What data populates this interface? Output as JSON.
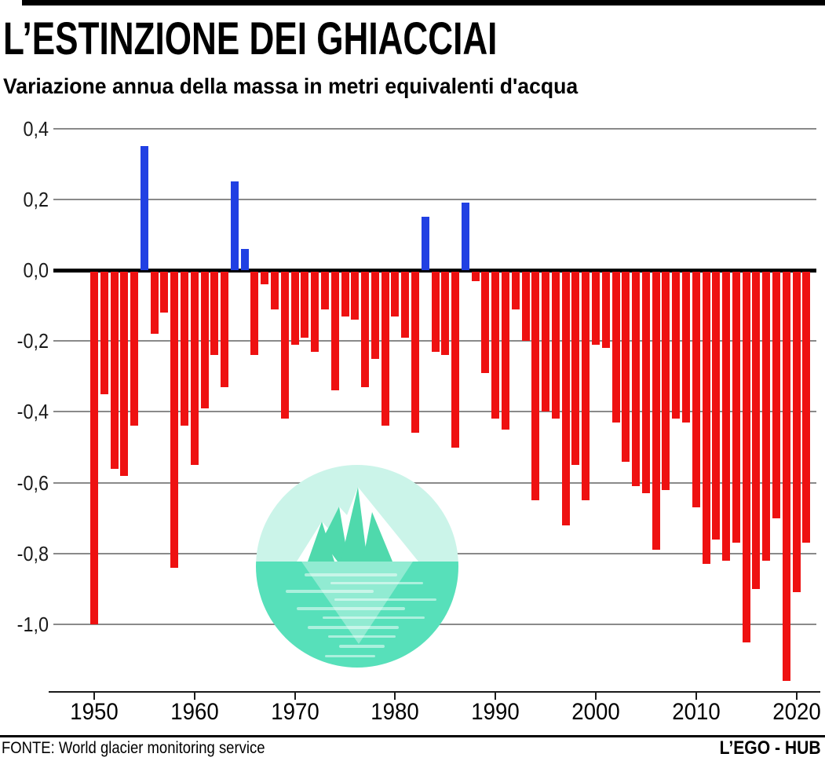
{
  "header": {
    "title": "L’ESTINZIONE DEI GHIACCIAI",
    "subtitle": "Variazione annua della massa in metri equivalenti d'acqua"
  },
  "footer": {
    "source": "FONTE: World glacier monitoring service",
    "brand": "L’EGO - HUB"
  },
  "colors": {
    "positive_bar": "#2140e3",
    "negative_bar": "#ee1111",
    "gridline": "#8a8a8a",
    "zero_line": "#000000",
    "iceberg_sky": "#cbf4e9",
    "iceberg_water": "#57e0ba",
    "iceberg_white": "#ffffff",
    "iceberg_facet": "#4fd9ac"
  },
  "chart_data": {
    "type": "bar",
    "title": "L’ESTINZIONE DEI GHIACCIAI",
    "subtitle": "Variazione annua della massa in metri equivalenti d'acqua",
    "xlabel": "",
    "ylabel": "metri equivalenti d'acqua",
    "grid": true,
    "ylim": [
      0.45,
      -1.2
    ],
    "y_ticks": [
      "0,4",
      "0,2",
      "0,0",
      "-0,2",
      "-0,4",
      "-0,6",
      "-0,8",
      "-1,0"
    ],
    "y_tick_values": [
      0.4,
      0.2,
      0.0,
      -0.2,
      -0.4,
      -0.6,
      -0.8,
      -1.0
    ],
    "x_ticks": [
      "1950",
      "1960",
      "1970",
      "1980",
      "1990",
      "2000",
      "2010",
      "2020"
    ],
    "x": [
      1950,
      1951,
      1952,
      1953,
      1954,
      1955,
      1956,
      1957,
      1958,
      1959,
      1960,
      1961,
      1962,
      1963,
      1964,
      1965,
      1966,
      1967,
      1968,
      1969,
      1970,
      1971,
      1972,
      1973,
      1974,
      1975,
      1976,
      1977,
      1978,
      1979,
      1980,
      1981,
      1982,
      1983,
      1984,
      1985,
      1986,
      1987,
      1988,
      1989,
      1990,
      1991,
      1992,
      1993,
      1994,
      1995,
      1996,
      1997,
      1998,
      1999,
      2000,
      2001,
      2002,
      2003,
      2004,
      2005,
      2006,
      2007,
      2008,
      2009,
      2010,
      2011,
      2012,
      2013,
      2014,
      2015,
      2016,
      2017,
      2018,
      2019,
      2020,
      2021
    ],
    "values": [
      -1.0,
      -0.35,
      -0.56,
      -0.58,
      -0.44,
      0.35,
      -0.18,
      -0.12,
      -0.84,
      -0.44,
      -0.55,
      -0.39,
      -0.24,
      -0.33,
      0.25,
      0.06,
      -0.24,
      -0.04,
      -0.11,
      -0.42,
      -0.21,
      -0.19,
      -0.23,
      -0.11,
      -0.34,
      -0.13,
      -0.14,
      -0.33,
      -0.25,
      -0.44,
      -0.13,
      -0.19,
      -0.46,
      0.15,
      -0.23,
      -0.24,
      -0.5,
      0.19,
      -0.03,
      -0.29,
      -0.42,
      -0.45,
      -0.11,
      -0.2,
      -0.65,
      -0.4,
      -0.42,
      -0.72,
      -0.55,
      -0.65,
      -0.21,
      -0.22,
      -0.43,
      -0.54,
      -0.61,
      -0.63,
      -0.79,
      -0.62,
      -0.42,
      -0.43,
      -0.67,
      -0.83,
      -0.76,
      -0.82,
      -0.77,
      -1.05,
      -0.9,
      -0.82,
      -0.7,
      -1.16,
      -0.91,
      -0.77
    ],
    "positive_color": "#2140e3",
    "negative_color": "#ee1111",
    "legend": [],
    "annotation": "iceberg-illustration"
  }
}
